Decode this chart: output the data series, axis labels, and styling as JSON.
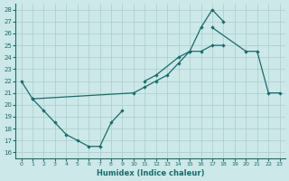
{
  "xlabel": "Humidex (Indice chaleur)",
  "bg_color": "#cce8e8",
  "grid_color": "#aacccc",
  "line_color": "#1a6b6b",
  "xlim": [
    -0.5,
    23.5
  ],
  "ylim": [
    15.5,
    28.5
  ],
  "x_ticks": [
    0,
    1,
    2,
    3,
    4,
    5,
    6,
    7,
    8,
    9,
    10,
    11,
    12,
    13,
    14,
    15,
    16,
    17,
    18,
    19,
    20,
    21,
    22,
    23
  ],
  "y_ticks": [
    16,
    17,
    18,
    19,
    20,
    21,
    22,
    23,
    24,
    25,
    26,
    27,
    28
  ],
  "series": [
    {
      "x": [
        0,
        1,
        2,
        3,
        4,
        5,
        6,
        7,
        8,
        9
      ],
      "y": [
        22,
        20.5,
        19.5,
        18.5,
        17.5,
        17.0,
        16.5,
        16.5,
        18.5,
        19.5
      ]
    },
    {
      "x": [
        1,
        10,
        11,
        12,
        13,
        14,
        15,
        16,
        17,
        18
      ],
      "y": [
        20.5,
        21,
        21.5,
        22,
        22.5,
        23.5,
        24.5,
        24.5,
        25,
        25
      ]
    },
    {
      "x": [
        11,
        12,
        14,
        15,
        16,
        17,
        18
      ],
      "y": [
        22,
        22.5,
        24,
        24.5,
        26.5,
        28,
        27
      ]
    },
    {
      "x": [
        17,
        20,
        21,
        22,
        23
      ],
      "y": [
        26.5,
        24.5,
        24.5,
        21,
        21
      ]
    }
  ]
}
